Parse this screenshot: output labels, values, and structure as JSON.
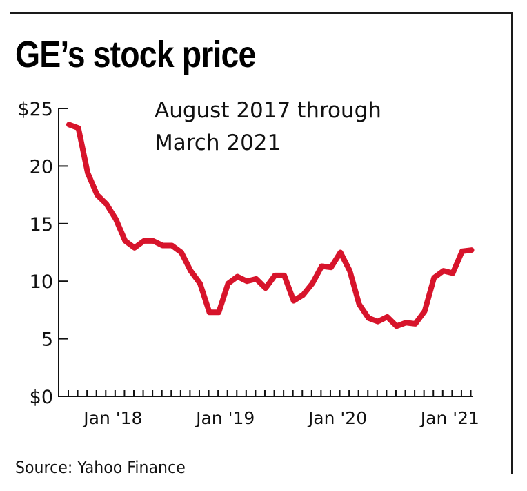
{
  "title": "GE’s stock price",
  "subtitle_lines": [
    "August 2017 through",
    "March 2021"
  ],
  "source": "Source: Yahoo Finance",
  "colors": {
    "line": "#D7142B",
    "axis": "#111111"
  },
  "chart_data": {
    "type": "line",
    "title": "GE’s stock price",
    "subtitle": "August 2017 through March 2021",
    "xlabel": "",
    "ylabel": "",
    "ylim": [
      0,
      25
    ],
    "yticks": [
      0,
      5,
      10,
      15,
      20,
      25
    ],
    "ytick_labels": [
      "$0",
      "5",
      "10",
      "15",
      "20",
      "$25"
    ],
    "x_start": "Aug 2017",
    "x_end": "Mar 2021",
    "x_interval": "monthly",
    "xtick_count": 44,
    "xtick_labels": [
      {
        "label": "Jan '18",
        "index": 5
      },
      {
        "label": "Jan '19",
        "index": 17
      },
      {
        "label": "Jan '20",
        "index": 29
      },
      {
        "label": "Jan '21",
        "index": 41
      }
    ],
    "grid": false,
    "series": [
      {
        "name": "GE stock price",
        "values": [
          23.6,
          23.3,
          19.4,
          17.5,
          16.7,
          15.4,
          13.5,
          12.9,
          13.5,
          13.5,
          13.1,
          13.1,
          12.5,
          10.9,
          9.8,
          7.3,
          7.3,
          9.8,
          10.4,
          10.0,
          10.2,
          9.4,
          10.5,
          10.5,
          8.3,
          8.8,
          9.8,
          11.3,
          11.2,
          12.5,
          10.9,
          8.0,
          6.8,
          6.5,
          6.9,
          6.1,
          6.4,
          6.3,
          7.4,
          10.3,
          10.9,
          10.7,
          12.6,
          12.7
        ]
      }
    ],
    "source": "Yahoo Finance"
  }
}
